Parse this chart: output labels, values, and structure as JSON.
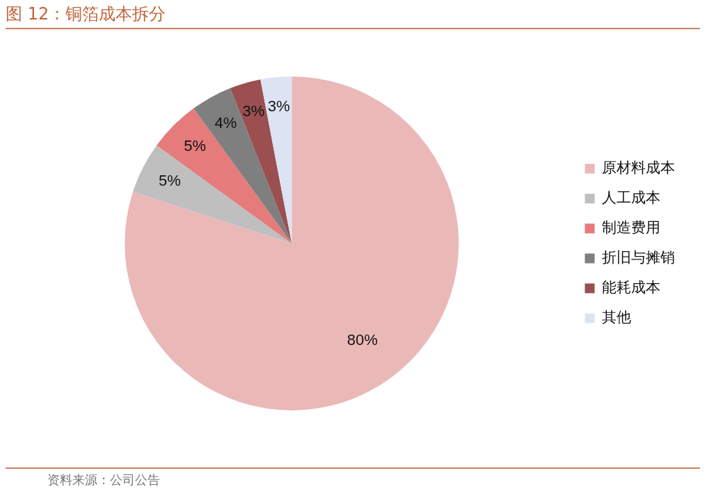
{
  "chart_data": {
    "type": "pie",
    "title": "图 12：铜箔成本拆分",
    "categories": [
      "原材料成本",
      "人工成本",
      "制造费用",
      "折旧与摊销",
      "能耗成本",
      "其他"
    ],
    "values": [
      80,
      5,
      5,
      4,
      3,
      3
    ],
    "colors": [
      "#ebb8b8",
      "#bfbfbf",
      "#e57b7b",
      "#7f7f7f",
      "#9b4f50",
      "#dce3f3"
    ],
    "value_labels": [
      "80%",
      "5%",
      "5%",
      "4%",
      "3%",
      "3%"
    ],
    "legend": "right",
    "annotations": [
      "资料来源：公司公告"
    ]
  }
}
